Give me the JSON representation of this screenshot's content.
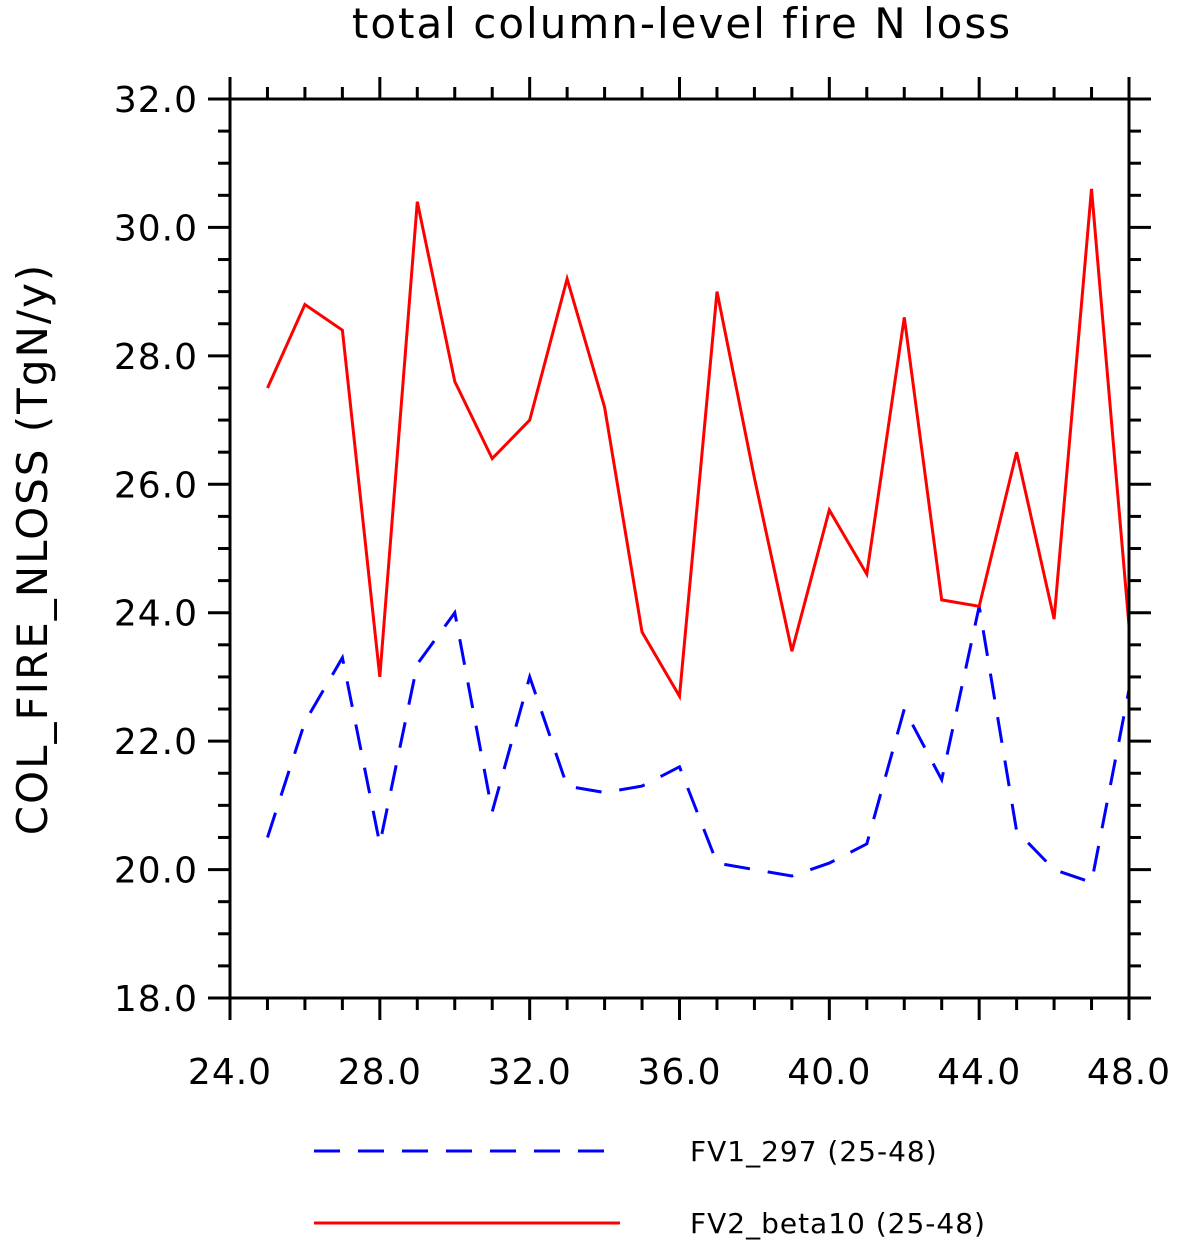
{
  "chart_data": {
    "type": "line",
    "title": "total column-level fire N loss",
    "xlabel": "",
    "ylabel": "COL_FIRE_NLOSS   (TgN/y)",
    "xlim": [
      24,
      48
    ],
    "ylim": [
      18,
      32
    ],
    "xticks": [
      24,
      28,
      32,
      36,
      40,
      44,
      48
    ],
    "xtick_labels": [
      "24.0",
      "28.0",
      "32.0",
      "36.0",
      "40.0",
      "44.0",
      "48.0"
    ],
    "yticks": [
      18,
      20,
      22,
      24,
      26,
      28,
      30,
      32
    ],
    "ytick_labels": [
      "18.0",
      "20.0",
      "22.0",
      "24.0",
      "26.0",
      "28.0",
      "30.0",
      "32.0"
    ],
    "grid": false,
    "legend_position": "bottom",
    "x": [
      25,
      26,
      27,
      28,
      29,
      30,
      31,
      32,
      33,
      34,
      35,
      36,
      37,
      38,
      39,
      40,
      41,
      42,
      43,
      44,
      45,
      46,
      47,
      48
    ],
    "series": [
      {
        "name": "FV1_297 (25-48)",
        "color": "#0000ff",
        "style": "dashed",
        "values": [
          20.5,
          22.3,
          23.3,
          20.4,
          23.2,
          24.0,
          20.9,
          23.0,
          21.3,
          21.2,
          21.3,
          21.6,
          20.1,
          20.0,
          19.9,
          20.1,
          20.4,
          22.5,
          21.4,
          24.1,
          20.6,
          20.0,
          19.8,
          22.8
        ]
      },
      {
        "name": "FV2_beta10 (25-48)",
        "color": "#ff0000",
        "style": "solid",
        "values": [
          27.5,
          28.8,
          28.4,
          23.0,
          30.4,
          27.6,
          26.4,
          27.0,
          29.2,
          27.2,
          23.7,
          22.7,
          29.0,
          26.1,
          23.4,
          25.6,
          24.6,
          28.6,
          24.2,
          24.1,
          26.5,
          23.9,
          30.6,
          23.8
        ]
      }
    ]
  }
}
